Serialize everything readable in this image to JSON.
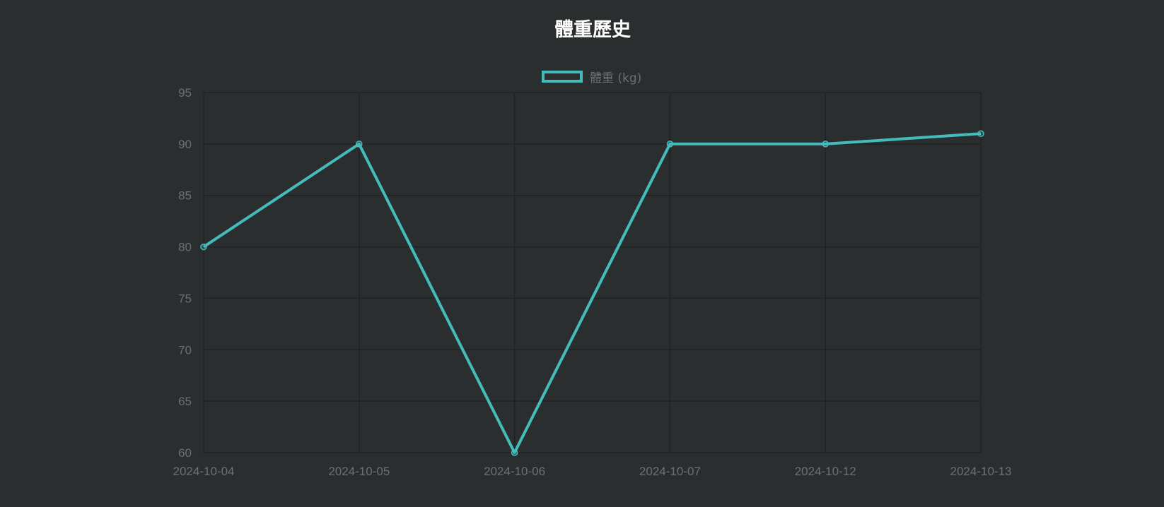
{
  "chart_data": {
    "type": "line",
    "title": "體重歷史",
    "xlabel": "",
    "ylabel": "",
    "categories": [
      "2024-10-04",
      "2024-10-05",
      "2024-10-06",
      "2024-10-07",
      "2024-10-12",
      "2024-10-13"
    ],
    "series": [
      {
        "name": "體重 (kg)",
        "values": [
          80,
          90,
          60,
          90,
          90,
          91
        ]
      }
    ],
    "ylim": [
      60,
      95
    ],
    "yticks": [
      95,
      90,
      85,
      80,
      75,
      70,
      65,
      60
    ],
    "grid": true,
    "legend_position": "top",
    "colors": {
      "background": "#2b2e2f",
      "line": "#45bcbc",
      "grid": "#202324",
      "tick_text": "#6b7070",
      "title": "#ffffff"
    }
  }
}
